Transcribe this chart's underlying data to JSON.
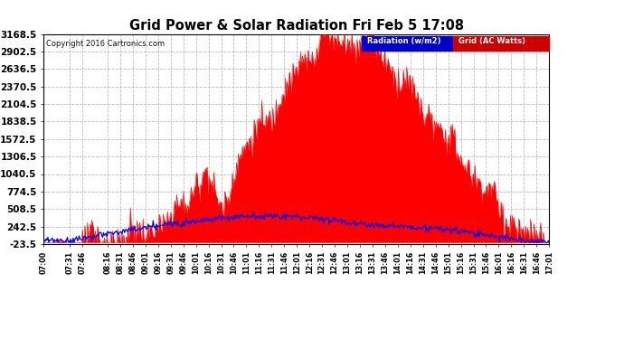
{
  "title": "Grid Power & Solar Radiation Fri Feb 5 17:08",
  "copyright": "Copyright 2016 Cartronics.com",
  "legend_radiation": "Radiation (w/m2)",
  "legend_grid": "Grid (AC Watts)",
  "y_ticks": [
    -23.5,
    242.5,
    508.5,
    774.5,
    1040.5,
    1306.5,
    1572.5,
    1838.5,
    2104.5,
    2370.5,
    2636.5,
    2902.5,
    3168.5
  ],
  "ylim": [
    -23.5,
    3168.5
  ],
  "bg_color": "#ffffff",
  "grid_color": "#aaaaaa",
  "fill_color": "#ff0000",
  "line_color": "#0000ff",
  "title_color": "#000000",
  "x_tick_labels": [
    "07:00",
    "07:31",
    "07:46",
    "08:16",
    "08:31",
    "08:46",
    "09:01",
    "09:16",
    "09:31",
    "09:46",
    "10:01",
    "10:16",
    "10:31",
    "10:46",
    "11:01",
    "11:16",
    "11:31",
    "11:46",
    "12:01",
    "12:16",
    "12:31",
    "12:46",
    "13:01",
    "13:16",
    "13:31",
    "13:46",
    "14:01",
    "14:16",
    "14:31",
    "14:46",
    "15:01",
    "15:16",
    "15:31",
    "15:46",
    "16:01",
    "16:16",
    "16:31",
    "16:46",
    "17:01"
  ]
}
